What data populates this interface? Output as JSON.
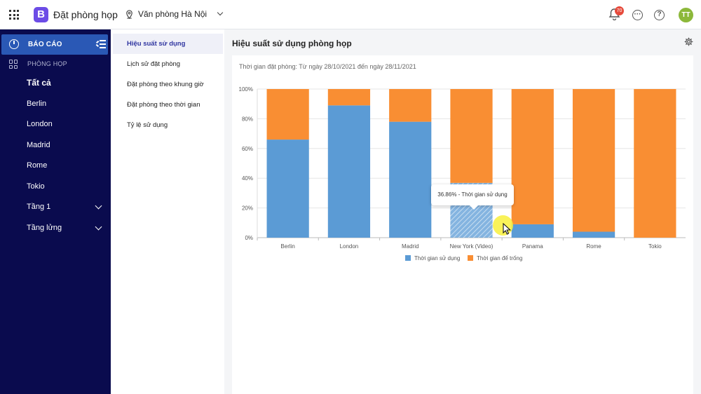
{
  "header": {
    "app_title": "Đặt phòng họp",
    "logo_letter": "B",
    "office_label": "Văn phòng Hà Nội",
    "notification_count": "70",
    "avatar_initials": "TT"
  },
  "sidebar": {
    "active_label": "BÁO CÁO",
    "section_label": "PHÒNG HỌP",
    "items": [
      {
        "label": "Tất cả"
      },
      {
        "label": "Berlin"
      },
      {
        "label": "London"
      },
      {
        "label": "Madrid"
      },
      {
        "label": "Rome"
      },
      {
        "label": "Tokio"
      },
      {
        "label": "Tầng 1"
      },
      {
        "label": "Tầng lửng"
      }
    ]
  },
  "submenu": {
    "items": [
      {
        "label": "Hiệu suất sử dụng"
      },
      {
        "label": "Lịch sử đặt phòng"
      },
      {
        "label": "Đặt phòng theo khung giờ"
      },
      {
        "label": "Đặt phòng theo thời gian"
      },
      {
        "label": "Tỷ lệ sử dụng"
      }
    ]
  },
  "main": {
    "title": "Hiệu suất sử dụng phòng họp",
    "period": "Thời gian đặt phòng: Từ ngày 28/10/2021 đến ngày 28/11/2021",
    "tooltip": "36.86% - Thời gian sử dụng"
  },
  "colors": {
    "used": "#5b9bd5",
    "free": "#f98e33",
    "sidebar_bg": "#0a0b4e",
    "sidebar_active": "#2a58b5"
  },
  "chart_data": {
    "type": "bar",
    "stacked": true,
    "categories": [
      "Berlin",
      "London",
      "Madrid",
      "New York (Video)",
      "Panama",
      "Rome",
      "Tokio"
    ],
    "series": [
      {
        "name": "Thời gian sử dụng",
        "values": [
          66,
          89,
          78,
          36.86,
          9,
          4,
          0
        ]
      },
      {
        "name": "Thời gian để trống",
        "values": [
          34,
          11,
          22,
          63.14,
          91,
          96,
          100
        ]
      }
    ],
    "yticks": [
      "0%",
      "20%",
      "40%",
      "60%",
      "80%",
      "100%"
    ],
    "ylim": [
      0,
      100
    ],
    "grid": true,
    "legend": "bottom-center",
    "highlighted": {
      "category": "New York (Video)",
      "series": "Thời gian sử dụng"
    }
  }
}
